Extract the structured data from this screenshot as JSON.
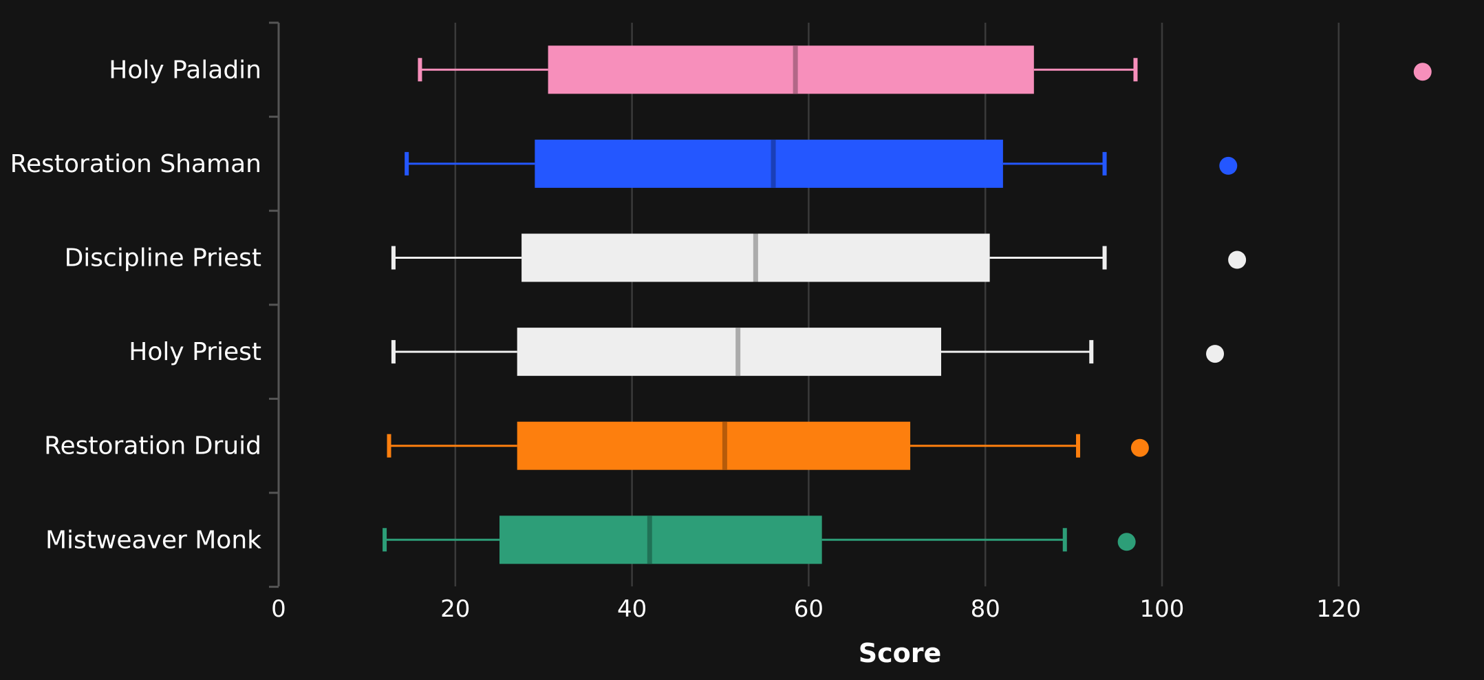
{
  "chart_data": {
    "type": "box",
    "orientation": "horizontal",
    "title": "",
    "xlabel": "Score",
    "ylabel": "",
    "xlim": [
      0,
      135
    ],
    "xticks": [
      0,
      20,
      40,
      60,
      80,
      100,
      120
    ],
    "grid": "vertical",
    "legend": "none",
    "background": "#141414",
    "series": [
      {
        "name": "Holy Paladin",
        "color": "#f78fbb",
        "min": 16,
        "q1": 30.5,
        "median": 58.5,
        "q3": 85.5,
        "max": 97,
        "outliers": [
          129.5
        ]
      },
      {
        "name": "Restoration Shaman",
        "color": "#2457ff",
        "min": 14.5,
        "q1": 29,
        "median": 56,
        "q3": 82,
        "max": 93.5,
        "outliers": [
          107.5
        ]
      },
      {
        "name": "Discipline Priest",
        "color": "#eeeeee",
        "min": 13,
        "q1": 27.5,
        "median": 54,
        "q3": 80.5,
        "max": 93.5,
        "outliers": [
          108.5
        ]
      },
      {
        "name": "Holy Priest",
        "color": "#eeeeee",
        "min": 13,
        "q1": 27,
        "median": 52,
        "q3": 75,
        "max": 92,
        "outliers": [
          106
        ]
      },
      {
        "name": "Restoration Druid",
        "color": "#fd7f0e",
        "min": 12.5,
        "q1": 27,
        "median": 50.5,
        "q3": 71.5,
        "max": 90.5,
        "outliers": [
          97.5
        ]
      },
      {
        "name": "Mistweaver Monk",
        "color": "#2d9e78",
        "min": 12,
        "q1": 25,
        "median": 42,
        "q3": 61.5,
        "max": 89,
        "outliers": [
          96
        ]
      }
    ]
  }
}
